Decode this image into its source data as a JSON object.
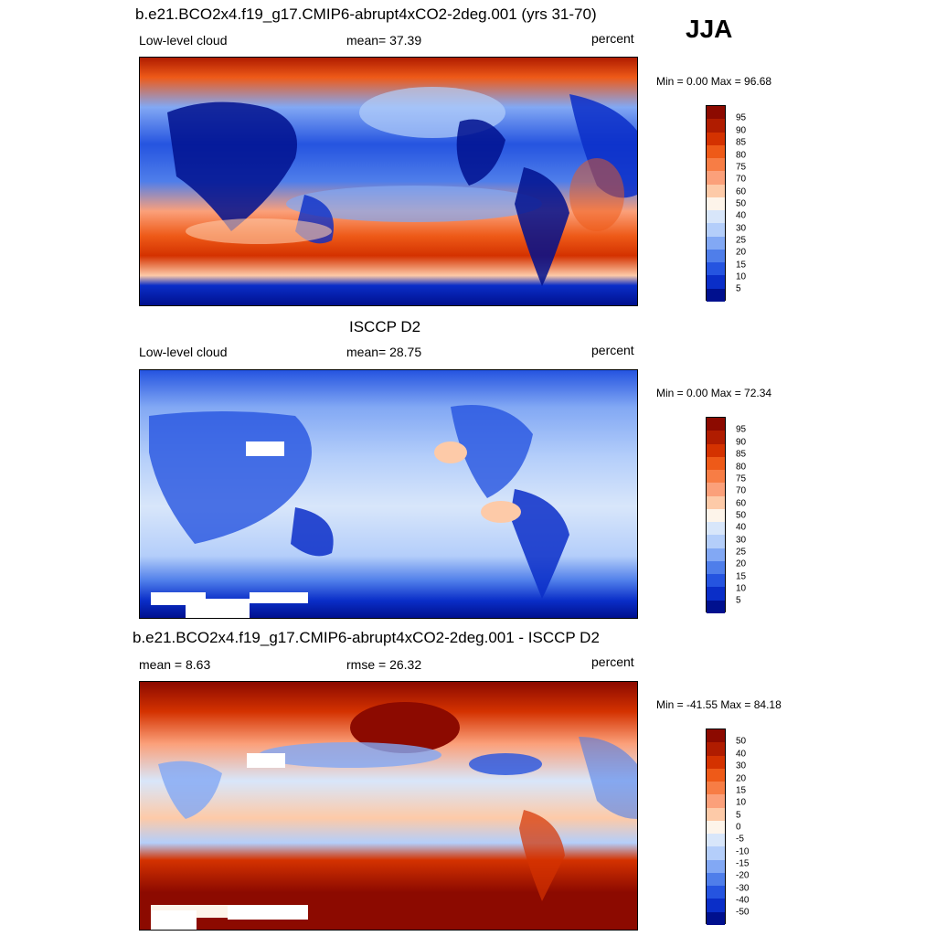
{
  "season": "JJA",
  "panels": [
    {
      "title": "b.e21.BCO2x4.f19_g17.CMIP6-abrupt4xCO2-2deg.001 (yrs 31-70)",
      "left": "Low-level cloud",
      "center": "mean=  37.39",
      "right": "percent",
      "minmax": "Min =   0.00 Max =  96.68",
      "colorbar_labels": [
        "95",
        "90",
        "85",
        "80",
        "75",
        "70",
        "60",
        "50",
        "40",
        "30",
        "25",
        "20",
        "15",
        "10",
        "5"
      ]
    },
    {
      "title": "ISCCP D2",
      "left": "Low-level cloud",
      "center": "mean=  28.75",
      "right": "percent",
      "minmax": "Min =   0.00 Max =  72.34",
      "colorbar_labels": [
        "95",
        "90",
        "85",
        "80",
        "75",
        "70",
        "60",
        "50",
        "40",
        "30",
        "25",
        "20",
        "15",
        "10",
        "5"
      ]
    },
    {
      "title": "b.e21.BCO2x4.f19_g17.CMIP6-abrupt4xCO2-2deg.001 - ISCCP D2",
      "left": "mean =   8.63",
      "center": "rmse =  26.32",
      "right": "percent",
      "minmax": "Min = -41.55 Max =  84.18",
      "colorbar_labels": [
        "50",
        "40",
        "30",
        "20",
        "15",
        "10",
        "5",
        "0",
        "-5",
        "-10",
        "-15",
        "-20",
        "-30",
        "-40",
        "-50"
      ]
    }
  ],
  "colors": {
    "scale": [
      "#8c0a00",
      "#b01c00",
      "#d43200",
      "#ee5a18",
      "#f77d45",
      "#fba07a",
      "#fdcaa8",
      "#fdf4ea",
      "#d8e6fa",
      "#b4cefa",
      "#82a8f4",
      "#4f7eea",
      "#2554e0",
      "#0a2ec8",
      "#00108e"
    ],
    "ocean_dark_red": "#9a1000",
    "land_blue": "#0c2fc8"
  }
}
